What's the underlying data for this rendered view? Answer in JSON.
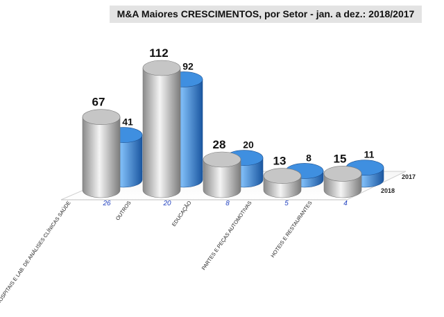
{
  "chart_data": {
    "type": "bar",
    "title": "M&A Maiores CRESCIMENTOS, por Setor  - jan. a dez.:  2018/2017",
    "categories": [
      "HOSPITAIS E LAB. DE ANÁLISES CLÍNICAS SAÚDE",
      "OUTROS",
      "EDUCAÇÃO",
      "PARTES E PEÇAS AUTOMOTIVAS",
      "HOTEIS E RESTAURANTES"
    ],
    "series": [
      {
        "name": "2018",
        "values": [
          67,
          112,
          28,
          13,
          15
        ],
        "color": "#b9b9b9"
      },
      {
        "name": "2017",
        "values": [
          41,
          92,
          20,
          8,
          11
        ],
        "color": "#3f8fe0"
      }
    ],
    "differences": [
      "26",
      "20",
      "8",
      "5",
      "4"
    ],
    "ylim": [
      0,
      112
    ],
    "grid": false
  }
}
